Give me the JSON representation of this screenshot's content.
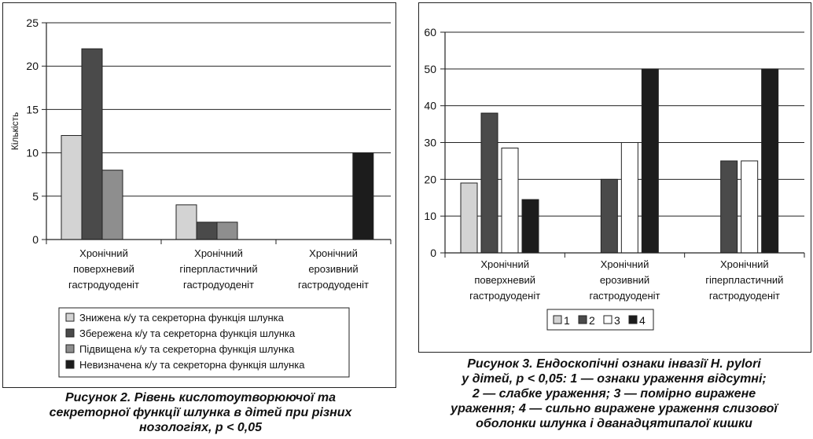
{
  "colors": {
    "series1": "#d3d3d3",
    "series2": "#4a4a4a",
    "series3": "#8e8e8e",
    "series4": "#1c1c1c",
    "white": "#ffffff"
  },
  "figure2": {
    "caption_lines": [
      "Рисунок 2. Рівень кислотоутворюючої та",
      "секреторної функції шлунка в дітей при різних",
      "нозологіях, p < 0,05"
    ],
    "chart_data": {
      "type": "bar",
      "title": "",
      "xlabel": "",
      "ylabel": "Кількість",
      "ylim": [
        0,
        25
      ],
      "yticks": [
        0,
        5,
        10,
        15,
        20,
        25
      ],
      "grid": true,
      "legend_position": "bottom",
      "categories": [
        [
          "Хронічний",
          "поверхневий",
          "гастродуоденіт"
        ],
        [
          "Хронічний",
          "гіперпластичний",
          "гастродуоденіт"
        ],
        [
          "Хронічний",
          "ерозивний",
          "гастродуоденіт"
        ]
      ],
      "series": [
        {
          "name": "Знижена к/у та секреторна функція шлунка",
          "color": "#d3d3d3",
          "values": [
            12,
            4,
            0
          ]
        },
        {
          "name": "Збережена к/у та секреторна функція шлунка",
          "color": "#4a4a4a",
          "values": [
            22,
            2,
            0
          ]
        },
        {
          "name": "Підвищена к/у та секреторна функція шлунка",
          "color": "#8e8e8e",
          "values": [
            8,
            2,
            0
          ]
        },
        {
          "name": "Невизначена к/у та секреторна функція шлунка",
          "color": "#1c1c1c",
          "values": [
            0,
            0,
            10
          ]
        }
      ]
    }
  },
  "figure3": {
    "caption_lines": [
      "Рисунок 3. Ендоскопічні ознаки інвазії H. pylori",
      "у дітей, p < 0,05: 1 — ознаки ураження відсутні;",
      "2 — слабке ураження; 3 — помірно виражене",
      "ураження; 4 — сильно виражене ураження слизової",
      "оболонки шлунка і дванадцятипалої кишки"
    ],
    "chart_data": {
      "type": "bar",
      "title": "",
      "xlabel": "",
      "ylabel": "",
      "ylim": [
        0,
        60
      ],
      "yticks": [
        0,
        10,
        20,
        30,
        40,
        50,
        60
      ],
      "grid": true,
      "legend_position": "bottom",
      "categories": [
        [
          "Хронічний",
          "поверхневий",
          "гастродуоденіт"
        ],
        [
          "Хронічний",
          "ерозивний",
          "гастродуоденіт"
        ],
        [
          "Хронічний",
          "гіперпластичний",
          "гастродуоденіт"
        ]
      ],
      "series": [
        {
          "name": "1",
          "color": "#d3d3d3",
          "values": [
            19,
            0,
            0
          ]
        },
        {
          "name": "2",
          "color": "#4a4a4a",
          "values": [
            38,
            20,
            25
          ]
        },
        {
          "name": "3",
          "color": "#ffffff",
          "values": [
            28.5,
            30,
            25
          ]
        },
        {
          "name": "4",
          "color": "#1c1c1c",
          "values": [
            14.5,
            50,
            50
          ]
        }
      ]
    }
  }
}
